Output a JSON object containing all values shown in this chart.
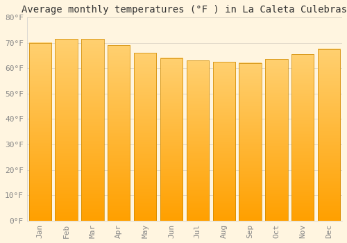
{
  "title": "Average monthly temperatures (°F ) in La Caleta Culebras",
  "months": [
    "Jan",
    "Feb",
    "Mar",
    "Apr",
    "May",
    "Jun",
    "Jul",
    "Aug",
    "Sep",
    "Oct",
    "Nov",
    "Dec"
  ],
  "temperatures": [
    70.0,
    71.5,
    71.5,
    69.0,
    66.0,
    64.0,
    63.0,
    62.5,
    62.0,
    63.5,
    65.5,
    67.5
  ],
  "bar_color_top": "#FFD070",
  "bar_color_bottom": "#FFA000",
  "bar_edge_color": "#CC8800",
  "background_color": "#FFF5E0",
  "grid_color": "#E0D8C8",
  "ylim": [
    0,
    80
  ],
  "yticks": [
    0,
    10,
    20,
    30,
    40,
    50,
    60,
    70,
    80
  ],
  "title_fontsize": 10,
  "tick_fontsize": 8,
  "xlabel_rotation": 90,
  "bar_width": 0.85
}
